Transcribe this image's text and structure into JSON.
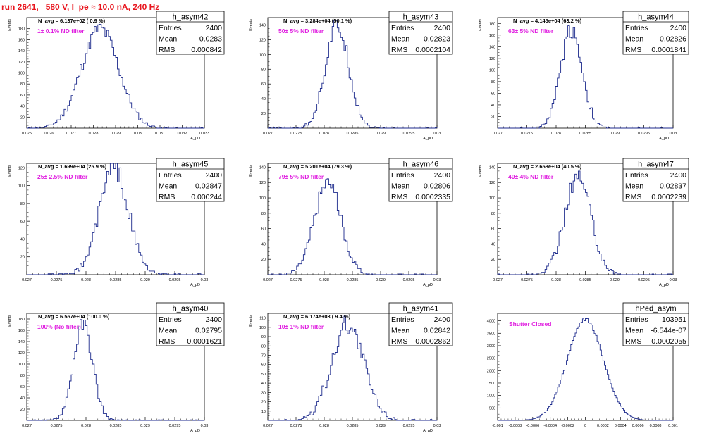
{
  "run_title": "run 2641,   580 V, I_pe ≈ 10.0 nA, 240 Hz",
  "colors": {
    "hist": "#1c2a8c",
    "annot": "#e01fe0",
    "title": "#e8161e",
    "axis": "#000000"
  },
  "chart_data": [
    {
      "type": "bar",
      "title": "h_asym42",
      "ylabel": "Events",
      "xlabel": "A_μD",
      "navg": "N_avg = 6.137e+02 ( 0.9 %)",
      "filter": "1± 0.1% ND filter",
      "stats": [
        [
          "Entries",
          "2400"
        ],
        [
          "Mean",
          "0.0283"
        ],
        [
          "RMS",
          "0.000842"
        ]
      ],
      "xlim": [
        0.025,
        0.033
      ],
      "xticks": [
        "0.025",
        "0.026",
        "0.027",
        "0.028",
        "0.029",
        "0.03",
        "0.031",
        "0.032",
        "0.033"
      ],
      "ylim": [
        0,
        200
      ],
      "yticks": [
        20,
        40,
        60,
        80,
        100,
        120,
        140,
        160,
        180
      ],
      "mean": 0.0283,
      "rms": 0.000842,
      "peak": 180,
      "bins": 100
    },
    {
      "type": "bar",
      "title": "h_asym43",
      "ylabel": "Events",
      "xlabel": "A_μD",
      "navg": "N_avg = 3.284e+04 (50.1 %)",
      "filter": "50± 5% ND filter",
      "stats": [
        [
          "Entries",
          "2400"
        ],
        [
          "Mean",
          "0.02823"
        ],
        [
          "RMS",
          "0.0002104"
        ]
      ],
      "xlim": [
        0.027,
        0.03
      ],
      "xticks": [
        "0.027",
        "0.0275",
        "0.028",
        "0.0285",
        "0.029",
        "0.0295",
        "0.03"
      ],
      "ylim": [
        0,
        150
      ],
      "yticks": [
        20,
        40,
        60,
        80,
        100,
        120,
        140
      ],
      "mean": 0.02823,
      "rms": 0.0002104,
      "peak": 138,
      "bins": 100
    },
    {
      "type": "bar",
      "title": "h_asym44",
      "ylabel": "Events",
      "xlabel": "A_μD",
      "navg": "N_avg = 4.145e+04 (63.2 %)",
      "filter": "63± 5% ND filter",
      "stats": [
        [
          "Entries",
          "2400"
        ],
        [
          "Mean",
          "0.02826"
        ],
        [
          "RMS",
          "0.0001841"
        ]
      ],
      "xlim": [
        0.027,
        0.03
      ],
      "xticks": [
        "0.027",
        "0.0275",
        "0.028",
        "0.0285",
        "0.029",
        "0.0295",
        "0.03"
      ],
      "ylim": [
        0,
        190
      ],
      "yticks": [
        20,
        40,
        60,
        80,
        100,
        120,
        140,
        160,
        180
      ],
      "mean": 0.02826,
      "rms": 0.0001841,
      "peak": 170,
      "bins": 100
    },
    {
      "type": "bar",
      "title": "h_asym45",
      "ylabel": "Events",
      "xlabel": "A_μD",
      "navg": "N_avg = 1.699e+04 (25.9 %)",
      "filter": "25± 2.5% ND filter",
      "stats": [
        [
          "Entries",
          "2400"
        ],
        [
          "Mean",
          "0.02847"
        ],
        [
          "RMS",
          "0.000244"
        ]
      ],
      "xlim": [
        0.027,
        0.03
      ],
      "xticks": [
        "0.027",
        "0.0275",
        "0.028",
        "0.0285",
        "0.029",
        "0.0295",
        "0.03"
      ],
      "ylim": [
        0,
        125
      ],
      "yticks": [
        20,
        40,
        60,
        80,
        100,
        120
      ],
      "mean": 0.02847,
      "rms": 0.000244,
      "peak": 120,
      "bins": 100
    },
    {
      "type": "bar",
      "title": "h_asym46",
      "ylabel": "Events",
      "xlabel": "A_μD",
      "navg": "N_avg = 5.201e+04 (79.3 %)",
      "filter": "79± 5% ND filter",
      "stats": [
        [
          "Entries",
          "2400"
        ],
        [
          "Mean",
          "0.02806"
        ],
        [
          "RMS",
          "0.0002335"
        ]
      ],
      "xlim": [
        0.027,
        0.03
      ],
      "xticks": [
        "0.027",
        "0.0275",
        "0.028",
        "0.0285",
        "0.029",
        "0.0295",
        "0.03"
      ],
      "ylim": [
        0,
        145
      ],
      "yticks": [
        20,
        40,
        60,
        80,
        100,
        120,
        140
      ],
      "mean": 0.02806,
      "rms": 0.0002335,
      "peak": 120,
      "bins": 100
    },
    {
      "type": "bar",
      "title": "h_asym47",
      "ylabel": "Events",
      "xlabel": "A_μD",
      "navg": "N_avg = 2.658e+04 (40.5 %)",
      "filter": "40± 4% ND filter",
      "stats": [
        [
          "Entries",
          "2400"
        ],
        [
          "Mean",
          "0.02837"
        ],
        [
          "RMS",
          "0.0002239"
        ]
      ],
      "xlim": [
        0.027,
        0.03
      ],
      "xticks": [
        "0.027",
        "0.0275",
        "0.028",
        "0.0285",
        "0.029",
        "0.0295",
        "0.03"
      ],
      "ylim": [
        0,
        145
      ],
      "yticks": [
        20,
        40,
        60,
        80,
        100,
        120,
        140
      ],
      "mean": 0.02837,
      "rms": 0.0002239,
      "peak": 128,
      "bins": 100
    },
    {
      "type": "bar",
      "title": "h_asym40",
      "ylabel": "Events",
      "xlabel": "A_μD",
      "navg": "N_avg = 6.557e+04 (100.0 %)",
      "filter": "100% (No filter)",
      "stats": [
        [
          "Entries",
          "2400"
        ],
        [
          "Mean",
          "0.02795"
        ],
        [
          "RMS",
          "0.0001621"
        ]
      ],
      "xlim": [
        0.027,
        0.03
      ],
      "xticks": [
        "0.027",
        "0.0275",
        "0.028",
        "0.0285",
        "0.029",
        "0.0295",
        "0.03"
      ],
      "ylim": [
        0,
        190
      ],
      "yticks": [
        20,
        40,
        60,
        80,
        100,
        120,
        140,
        160,
        180
      ],
      "mean": 0.02795,
      "rms": 0.0001621,
      "peak": 170,
      "bins": 100
    },
    {
      "type": "bar",
      "title": "h_asym41",
      "ylabel": "Events",
      "xlabel": "A_μD",
      "navg": "N_avg = 6.174e+03 ( 9.4 %)",
      "filter": "10± 1% ND filter",
      "stats": [
        [
          "Entries",
          "2400"
        ],
        [
          "Mean",
          "0.02842"
        ],
        [
          "RMS",
          "0.0002862"
        ]
      ],
      "xlim": [
        0.027,
        0.03
      ],
      "xticks": [
        "0.027",
        "0.0275",
        "0.028",
        "0.0285",
        "0.029",
        "0.0295",
        "0.03"
      ],
      "ylim": [
        0,
        115
      ],
      "yticks": [
        10,
        20,
        30,
        40,
        50,
        60,
        70,
        80,
        90,
        100,
        110
      ],
      "mean": 0.02842,
      "rms": 0.0002862,
      "peak": 103,
      "bins": 100
    },
    {
      "type": "bar",
      "title": "hPed_asym",
      "ylabel": "",
      "xlabel": "",
      "navg": "",
      "filter": "Shutter Closed",
      "stats": [
        [
          "Entries",
          "103951"
        ],
        [
          "Mean",
          "-6.544e-07"
        ],
        [
          "RMS",
          "0.0002055"
        ]
      ],
      "xlim": [
        -0.001,
        0.001
      ],
      "xticks": [
        "-0.001",
        "-0.0008",
        "-0.0006",
        "-0.0004",
        "-0.0002",
        "0",
        "0.0002",
        "0.0004",
        "0.0006",
        "0.0008",
        "0.001"
      ],
      "ylim": [
        0,
        4300
      ],
      "yticks": [
        500,
        1000,
        1500,
        2000,
        2500,
        3000,
        3500,
        4000
      ],
      "mean": 0,
      "rms": 0.0002055,
      "peak": 4050,
      "bins": 120
    }
  ]
}
